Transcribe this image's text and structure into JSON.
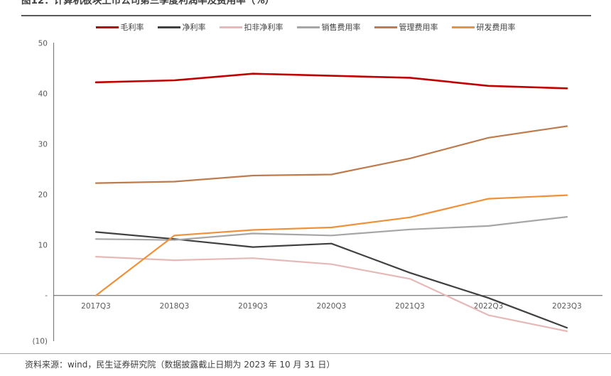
{
  "title": "图12：计算机板块上市公司第三季度利润率及费用率（%）",
  "source": "资料来源：wind，民生证券研究院（数据披露截止日期为 2023 年 10 月 31 日）",
  "chart_data": {
    "type": "line",
    "title": "计算机板块上市公司第三季度利润率及费用率（%）",
    "categories": [
      "2017Q3",
      "2018Q3",
      "2019Q3",
      "2020Q3",
      "2021Q3",
      "2022Q3",
      "2023Q3"
    ],
    "series": [
      {
        "id": "gross-margin",
        "name": "毛利率",
        "color": "#c00000",
        "width": 2.6,
        "values": [
          42.3,
          42.7,
          44.0,
          43.6,
          43.2,
          41.6,
          41.1
        ]
      },
      {
        "id": "net-margin",
        "name": "净利率",
        "color": "#404040",
        "width": 2.2,
        "values": [
          12.6,
          11.2,
          9.6,
          10.3,
          4.5,
          -0.5,
          -6.4
        ]
      },
      {
        "id": "adjusted-net-margin",
        "name": "扣非净利率",
        "color": "#e6b9b8",
        "width": 2.2,
        "values": [
          7.7,
          7.0,
          7.4,
          6.2,
          3.3,
          -3.9,
          -7.1
        ]
      },
      {
        "id": "sales-expense",
        "name": "销售费用率",
        "color": "#a6a6a6",
        "width": 2.2,
        "values": [
          11.2,
          11.0,
          12.3,
          11.9,
          13.1,
          13.8,
          15.6
        ]
      },
      {
        "id": "admin-expense",
        "name": "管理费用率",
        "color": "#be7b4d",
        "width": 2.2,
        "values": [
          22.3,
          22.6,
          23.8,
          24.0,
          27.2,
          31.3,
          33.6
        ]
      },
      {
        "id": "rd-expense",
        "name": "研发费用率",
        "color": "#f0913a",
        "width": 2.2,
        "values": [
          0.0,
          11.9,
          13.0,
          13.5,
          15.5,
          19.2,
          19.9
        ]
      }
    ],
    "yticks": {
      "labels": [
        "50",
        "40",
        "30",
        "20",
        "10",
        "-",
        "(10)"
      ],
      "values": [
        50,
        40,
        30,
        20,
        10,
        0,
        -10
      ]
    },
    "ylim": [
      -10,
      50
    ],
    "xlabel": "",
    "ylabel": "",
    "grid": false,
    "legend_position": "top"
  }
}
